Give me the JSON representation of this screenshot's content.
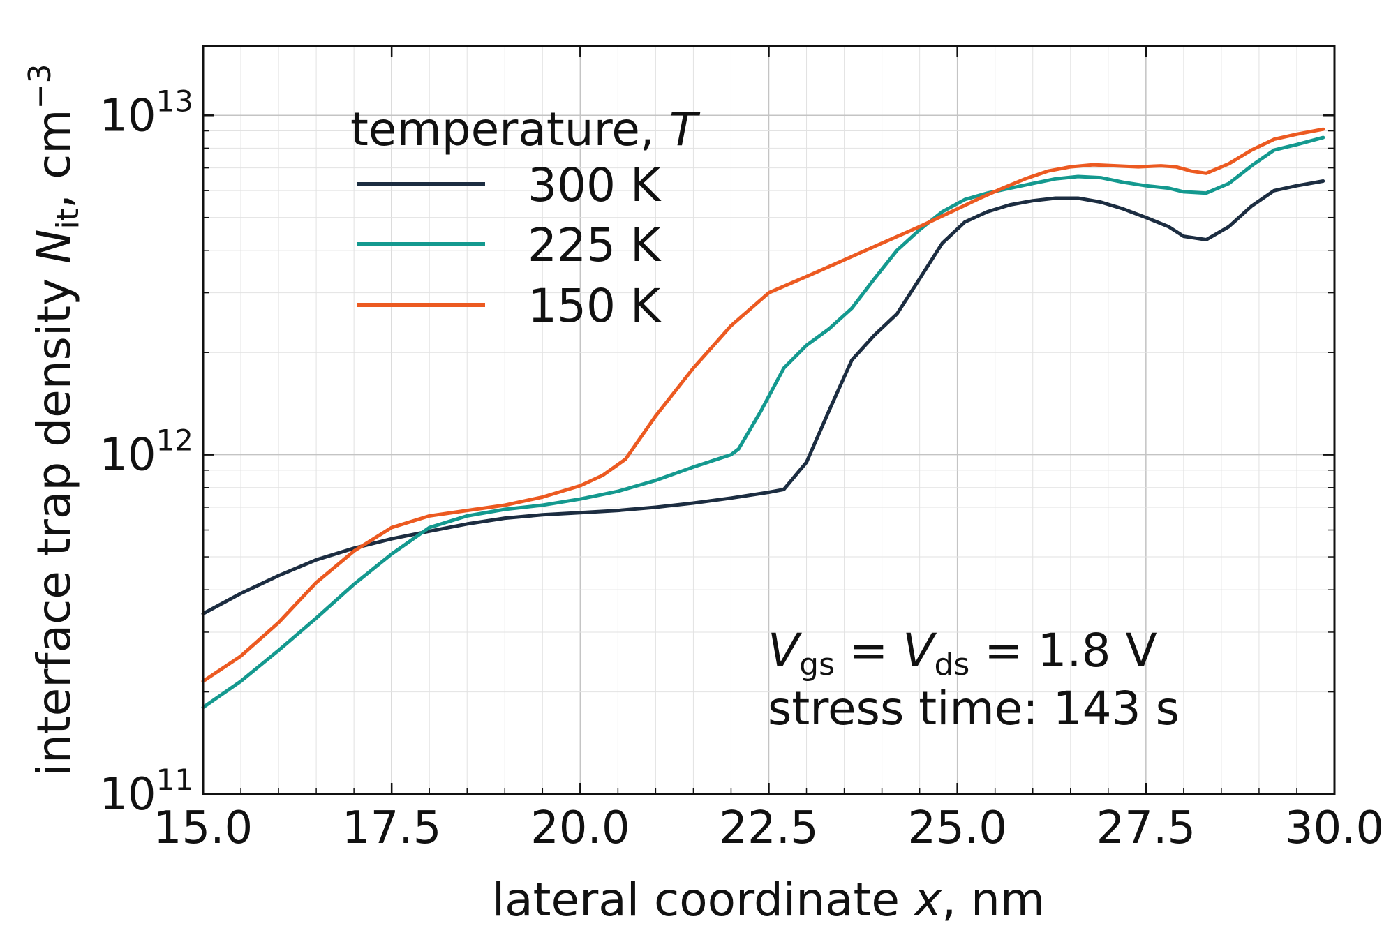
{
  "chart_data": {
    "type": "line",
    "title": "",
    "xlabel_text": "lateral coordinate ",
    "xlabel_var": "x",
    "xlabel_unit": ", nm",
    "ylabel_text": "interface trap density ",
    "ylabel_var": "N",
    "ylabel_sub": "it",
    "ylabel_unit": ", cm",
    "ylabel_exp": "−3",
    "xlim": [
      15.0,
      30.0
    ],
    "ylim": [
      100000000000.0,
      16000000000000.0
    ],
    "yscale": "log",
    "grid": true,
    "x_ticks": [
      "15.0",
      "17.5",
      "20.0",
      "22.5",
      "25.0",
      "27.5",
      "30.0"
    ],
    "y_ticks": [
      {
        "base": "10",
        "exp": "11",
        "value": 100000000000.0
      },
      {
        "base": "10",
        "exp": "12",
        "value": 1000000000000.0
      },
      {
        "base": "10",
        "exp": "13",
        "value": 10000000000000.0
      }
    ],
    "legend": {
      "title_text": "temperature, ",
      "title_var": "T",
      "placement": "top-left"
    },
    "annotation": {
      "v1": "V",
      "v1_sub": "gs",
      "eq1": " = ",
      "v2": "V",
      "v2_sub": "ds",
      "eq2": " = 1.8 V",
      "line2": "stress time: 143 s"
    },
    "series": [
      {
        "name": "300 K",
        "color": "#1c2d41",
        "x": [
          15.0,
          15.5,
          16.0,
          16.5,
          17.0,
          17.5,
          18.0,
          18.5,
          19.0,
          19.5,
          20.0,
          20.5,
          21.0,
          21.5,
          22.0,
          22.5,
          22.7,
          23.0,
          23.3,
          23.6,
          23.9,
          24.2,
          24.5,
          24.8,
          25.1,
          25.4,
          25.7,
          26.0,
          26.3,
          26.6,
          26.9,
          27.2,
          27.5,
          27.8,
          28.0,
          28.3,
          28.6,
          28.9,
          29.2,
          29.5,
          29.85
        ],
        "y": [
          340000000000.0,
          390000000000.0,
          440000000000.0,
          490000000000.0,
          530000000000.0,
          565000000000.0,
          595000000000.0,
          625000000000.0,
          650000000000.0,
          665000000000.0,
          675000000000.0,
          685000000000.0,
          700000000000.0,
          720000000000.0,
          745000000000.0,
          775000000000.0,
          790000000000.0,
          950000000000.0,
          1350000000000.0,
          1900000000000.0,
          2250000000000.0,
          2600000000000.0,
          3300000000000.0,
          4200000000000.0,
          4850000000000.0,
          5200000000000.0,
          5450000000000.0,
          5600000000000.0,
          5700000000000.0,
          5700000000000.0,
          5550000000000.0,
          5300000000000.0,
          5000000000000.0,
          4700000000000.0,
          4400000000000.0,
          4300000000000.0,
          4700000000000.0,
          5400000000000.0,
          6000000000000.0,
          6200000000000.0,
          6400000000000.0
        ]
      },
      {
        "name": "225 K",
        "color": "#14998f",
        "x": [
          15.0,
          15.5,
          16.0,
          16.5,
          17.0,
          17.5,
          18.0,
          18.5,
          19.0,
          19.5,
          20.0,
          20.5,
          21.0,
          21.5,
          22.0,
          22.1,
          22.4,
          22.7,
          23.0,
          23.3,
          23.6,
          23.9,
          24.2,
          24.5,
          24.8,
          25.1,
          25.4,
          25.7,
          26.0,
          26.3,
          26.6,
          26.9,
          27.2,
          27.5,
          27.8,
          28.0,
          28.3,
          28.6,
          28.9,
          29.2,
          29.5,
          29.85
        ],
        "y": [
          180000000000.0,
          215000000000.0,
          265000000000.0,
          330000000000.0,
          415000000000.0,
          510000000000.0,
          610000000000.0,
          660000000000.0,
          690000000000.0,
          710000000000.0,
          740000000000.0,
          780000000000.0,
          840000000000.0,
          920000000000.0,
          1000000000000.0,
          1040000000000.0,
          1350000000000.0,
          1800000000000.0,
          2100000000000.0,
          2350000000000.0,
          2700000000000.0,
          3300000000000.0,
          4000000000000.0,
          4600000000000.0,
          5200000000000.0,
          5650000000000.0,
          5900000000000.0,
          6100000000000.0,
          6300000000000.0,
          6500000000000.0,
          6600000000000.0,
          6550000000000.0,
          6350000000000.0,
          6200000000000.0,
          6100000000000.0,
          5950000000000.0,
          5900000000000.0,
          6300000000000.0,
          7100000000000.0,
          7900000000000.0,
          8200000000000.0,
          8600000000000.0
        ]
      },
      {
        "name": "150 K",
        "color": "#ec5a21",
        "x": [
          15.0,
          15.5,
          16.0,
          16.5,
          17.0,
          17.5,
          18.0,
          18.5,
          19.0,
          19.5,
          20.0,
          20.3,
          20.6,
          21.0,
          21.5,
          22.0,
          22.5,
          23.0,
          23.5,
          24.0,
          24.5,
          25.0,
          25.3,
          25.6,
          25.9,
          26.2,
          26.5,
          26.8,
          27.1,
          27.4,
          27.7,
          27.9,
          28.1,
          28.3,
          28.6,
          28.9,
          29.2,
          29.5,
          29.85
        ],
        "y": [
          215000000000.0,
          255000000000.0,
          320000000000.0,
          420000000000.0,
          520000000000.0,
          610000000000.0,
          660000000000.0,
          685000000000.0,
          710000000000.0,
          750000000000.0,
          810000000000.0,
          870000000000.0,
          970000000000.0,
          1300000000000.0,
          1800000000000.0,
          2400000000000.0,
          3000000000000.0,
          3350000000000.0,
          3750000000000.0,
          4200000000000.0,
          4700000000000.0,
          5300000000000.0,
          5700000000000.0,
          6100000000000.0,
          6500000000000.0,
          6850000000000.0,
          7050000000000.0,
          7150000000000.0,
          7100000000000.0,
          7050000000000.0,
          7100000000000.0,
          7050000000000.0,
          6850000000000.0,
          6750000000000.0,
          7200000000000.0,
          7900000000000.0,
          8500000000000.0,
          8800000000000.0,
          9100000000000.0
        ]
      }
    ]
  }
}
